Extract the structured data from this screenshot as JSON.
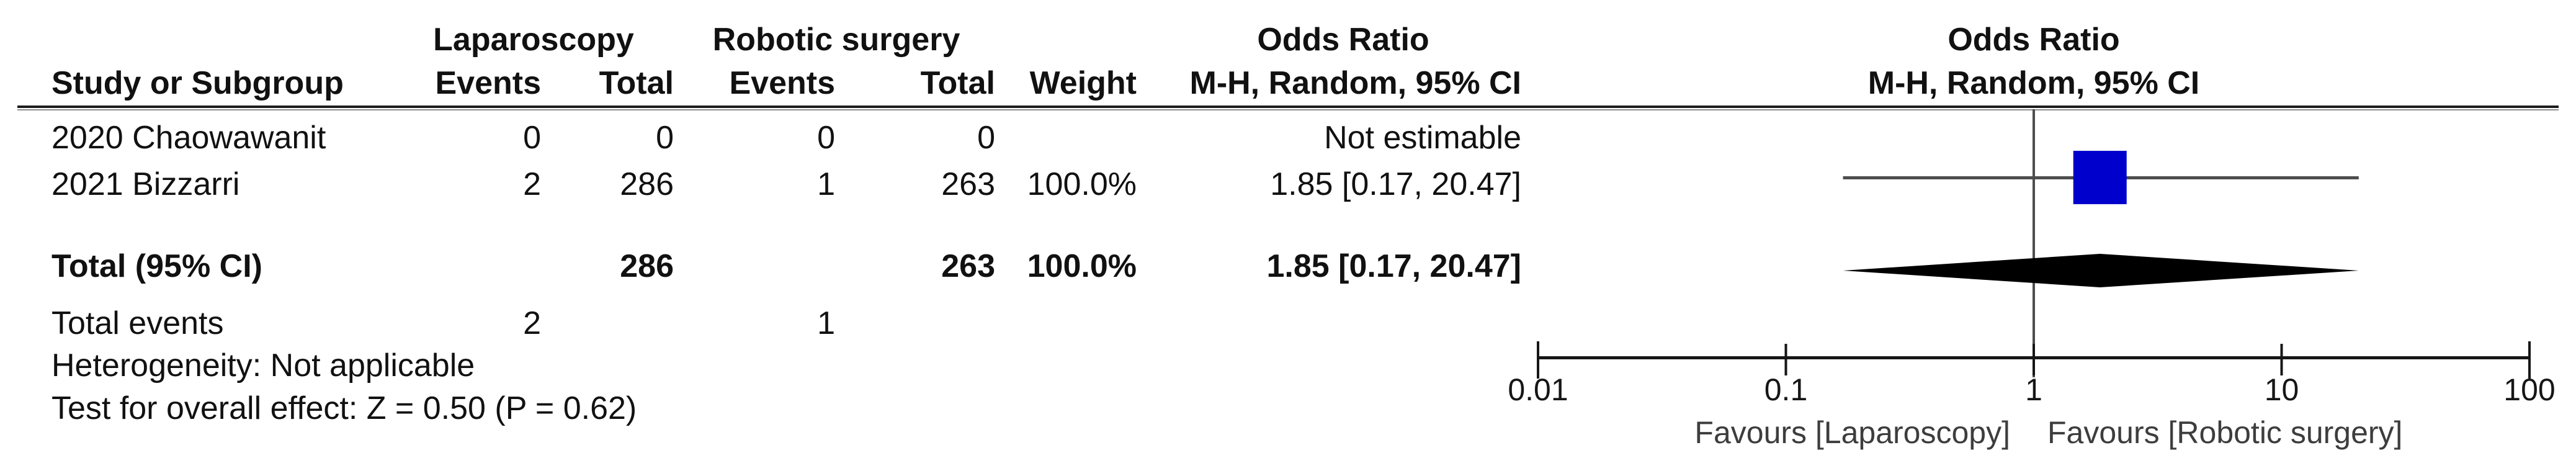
{
  "table": {
    "group_headers": {
      "laparoscopy": "Laparoscopy",
      "robotic": "Robotic surgery",
      "odds_ratio_left": "Odds Ratio",
      "odds_ratio_right": "Odds Ratio"
    },
    "col_headers": {
      "study": "Study or Subgroup",
      "lap_events": "Events",
      "lap_total": "Total",
      "rob_events": "Events",
      "rob_total": "Total",
      "weight": "Weight",
      "mh_ci": "M-H, Random, 95% CI",
      "mh_ci_right": "M-H, Random, 95% CI"
    },
    "rows": [
      {
        "study": "2020 Chaowawanit",
        "lap_events": "0",
        "lap_total": "0",
        "rob_events": "0",
        "rob_total": "0",
        "weight": "",
        "ci_text": "Not estimable"
      },
      {
        "study": "2021 Bizzarri",
        "lap_events": "2",
        "lap_total": "286",
        "rob_events": "1",
        "rob_total": "263",
        "weight": "100.0%",
        "ci_text": "1.85 [0.17, 20.47]"
      }
    ],
    "total_row": {
      "label": "Total (95% CI)",
      "lap_total": "286",
      "rob_total": "263",
      "weight": "100.0%",
      "ci_text": "1.85 [0.17, 20.47]"
    },
    "total_events": {
      "label": "Total events",
      "lap": "2",
      "rob": "1"
    },
    "heterogeneity": "Heterogeneity: Not applicable",
    "overall_effect": "Test for overall effect: Z = 0.50 (P = 0.62)"
  },
  "chart_data": {
    "type": "forest",
    "x_scale": "log10",
    "xlim": [
      0.01,
      100
    ],
    "axis_ticks": [
      0.01,
      0.1,
      1,
      10,
      100
    ],
    "tick_labels": [
      "0.01",
      "0.1",
      "1",
      "10",
      "100"
    ],
    "effect_measure": "Odds Ratio, M-H, Random, 95% CI",
    "studies": [
      {
        "name": "2020 Chaowawanit",
        "or": null,
        "ci_low": null,
        "ci_high": null,
        "weight_pct": null,
        "estimable": false
      },
      {
        "name": "2021 Bizzarri",
        "or": 1.85,
        "ci_low": 0.17,
        "ci_high": 20.47,
        "weight_pct": 100.0,
        "estimable": true
      }
    ],
    "total": {
      "or": 1.85,
      "ci_low": 0.17,
      "ci_high": 20.47
    },
    "favours_left": "Favours [Laparoscopy]",
    "favours_right": "Favours [Robotic surgery]",
    "marker_color": "#0000CC",
    "diamond_color": "#000000",
    "line_color": "#4d4d4d",
    "axis_color": "#161616"
  }
}
